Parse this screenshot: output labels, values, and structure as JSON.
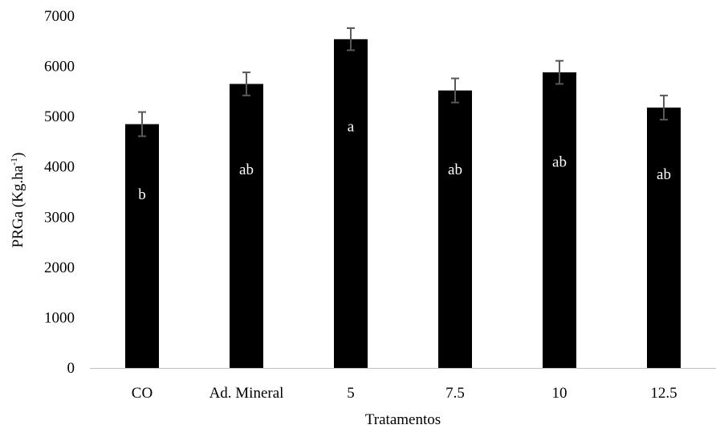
{
  "chart_data": {
    "type": "bar",
    "categories": [
      "CO",
      "Ad. Mineral",
      "5",
      "7.5",
      "10",
      "12.5"
    ],
    "values": [
      4850,
      5650,
      6540,
      5520,
      5880,
      5180
    ],
    "error": [
      240,
      230,
      220,
      240,
      230,
      240
    ],
    "labels": [
      "b",
      "ab",
      "a",
      "ab",
      "ab",
      "ab"
    ],
    "label_y": [
      3450,
      3950,
      4800,
      3950,
      4100,
      3850
    ],
    "xlabel": "Tratamentos",
    "ylabel": {
      "main": "PRGa (Kg.ha",
      "sup": "-1",
      "close": ")"
    },
    "yticks": [
      0,
      1000,
      2000,
      3000,
      4000,
      5000,
      6000,
      7000
    ],
    "ylim": [
      0,
      7000
    ],
    "grid": false,
    "colors": {
      "bar": "#000000",
      "error_bar": "#595959",
      "axis": "#bfbfbf",
      "label": "#ffffff"
    }
  }
}
